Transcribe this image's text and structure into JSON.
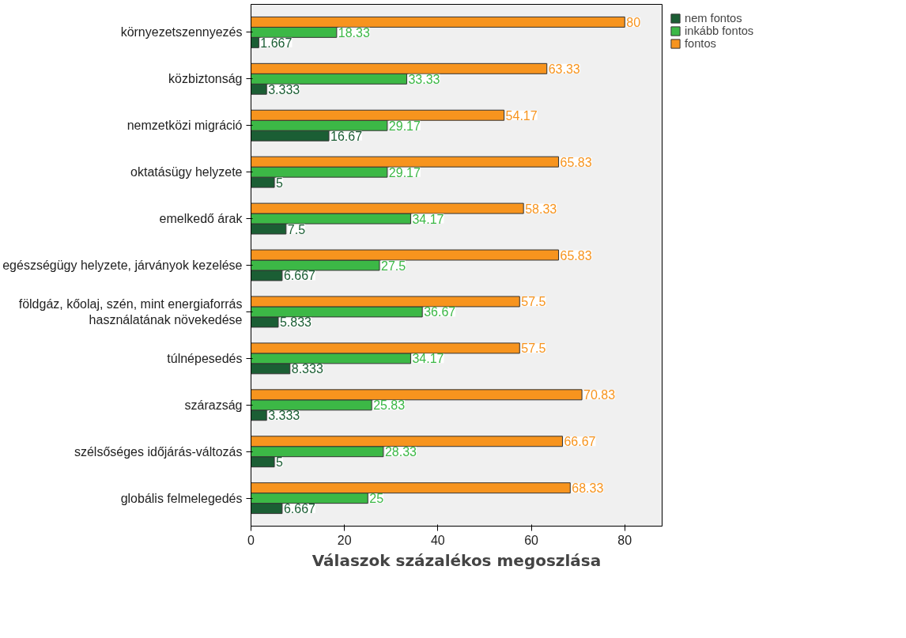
{
  "chart_data": {
    "type": "bar",
    "orientation": "horizontal",
    "xlabel": "Válaszok százalékos megoszlása",
    "categories": [
      "környezetszennyezés",
      "közbiztonság",
      "nemzetközi migráció",
      "oktatásügy helyzete",
      "emelkedő árak",
      "egészségügy helyzete, járványok kezelése",
      "földgáz, kőolaj, szén, mint energiaforrás\nhasználatának növekedése",
      "túlnépesedés",
      "szárazság",
      "szélsőséges időjárás-változás",
      "globális felmelegedés"
    ],
    "series": [
      {
        "name": "nem fontos",
        "color": "#1b5e34",
        "values": [
          1.667,
          3.333,
          16.67,
          5,
          7.5,
          6.667,
          5.833,
          8.333,
          3.333,
          5,
          6.667
        ]
      },
      {
        "name": "inkább fontos",
        "color": "#3cb846",
        "values": [
          18.33,
          33.33,
          29.17,
          29.17,
          34.17,
          27.5,
          36.67,
          34.17,
          25.83,
          28.33,
          25
        ]
      },
      {
        "name": "fontos",
        "color": "#f7941e",
        "values": [
          80,
          63.33,
          54.17,
          65.83,
          58.33,
          65.83,
          57.5,
          57.5,
          70.83,
          66.67,
          68.33
        ]
      }
    ],
    "xlim": [
      0,
      88
    ],
    "xticks": [
      0,
      20,
      40,
      60,
      80
    ],
    "grid": false,
    "legend": "top right",
    "data_labels": true
  }
}
